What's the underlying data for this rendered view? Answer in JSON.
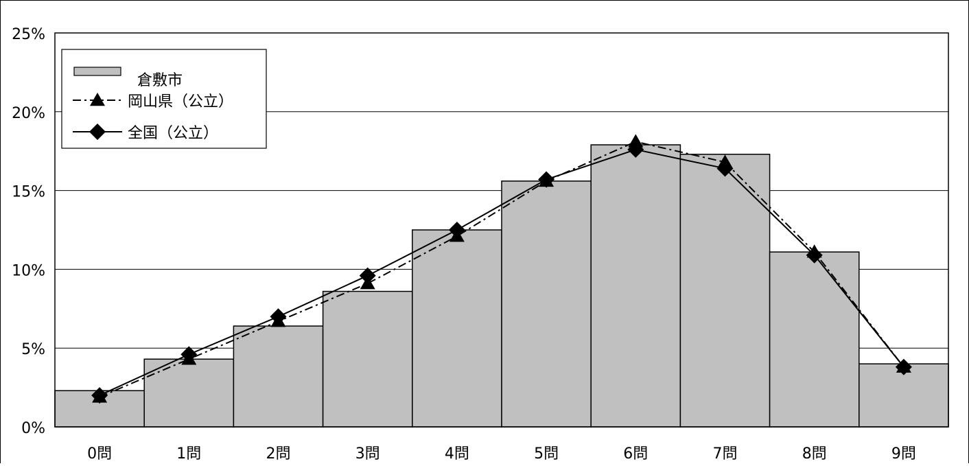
{
  "chart_data": {
    "type": "bar",
    "categories": [
      "0問",
      "1問",
      "2問",
      "3問",
      "4問",
      "5問",
      "6問",
      "7問",
      "8問",
      "9問"
    ],
    "series": [
      {
        "name": "倉敷市",
        "kind": "bar",
        "values": [
          2.3,
          4.3,
          6.4,
          8.6,
          12.5,
          15.6,
          17.9,
          17.3,
          11.1,
          4.0
        ],
        "color": "#c0c0c0"
      },
      {
        "name": "岡山県（公立）",
        "kind": "line",
        "line_style": "dash-dot",
        "marker": "triangle",
        "values": [
          1.9,
          4.3,
          6.7,
          9.1,
          12.1,
          15.6,
          18.1,
          16.8,
          11.1,
          3.8
        ],
        "color": "#000000"
      },
      {
        "name": "全国（公立）",
        "kind": "line",
        "line_style": "solid",
        "marker": "diamond",
        "values": [
          2.0,
          4.6,
          7.0,
          9.6,
          12.5,
          15.7,
          17.6,
          16.4,
          10.9,
          3.8
        ],
        "color": "#000000"
      }
    ],
    "y_ticks": [
      "0%",
      "5%",
      "10%",
      "15%",
      "20%",
      "25%"
    ],
    "ylim": [
      0,
      25
    ],
    "y_unit": "%",
    "grid": true,
    "legend_position": "top-left",
    "title": "",
    "xlabel": "",
    "ylabel": ""
  }
}
